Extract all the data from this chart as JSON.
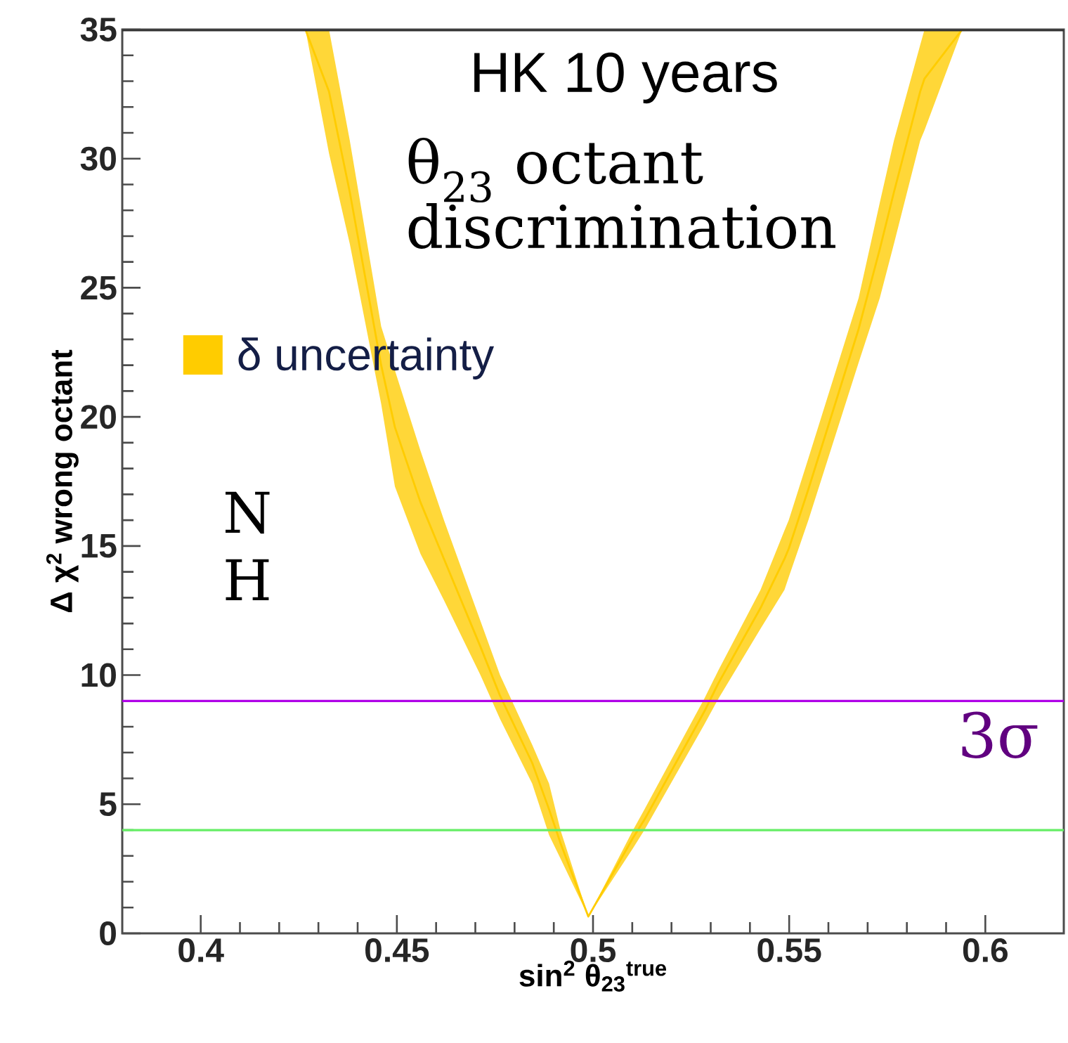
{
  "chart_data": {
    "type": "line",
    "xlabel": "sin$^{2}$ θ$_{23}$$^{true}$",
    "ylabel": "Δ χ$^{2}$ wrong octant",
    "annotations": [
      "HK 10 years",
      "θ$_{23}$ octant discrimination",
      "N H"
    ],
    "xlim": [
      0.38,
      0.62
    ],
    "xticks": [
      0.4,
      0.45,
      0.5,
      0.55,
      0.6
    ],
    "ylim": [
      0,
      35
    ],
    "yticks": [
      0,
      5,
      10,
      15,
      20,
      25,
      30,
      35
    ],
    "legend": "left",
    "grid": false,
    "ref_lines": [
      {
        "axis": "y",
        "value": 9,
        "label": "3σ",
        "color": "#b000e8"
      },
      {
        "axis": "y",
        "value": 4,
        "color": "#66ee66"
      }
    ],
    "series": [
      {
        "name": "δ uncertainty",
        "color": "#ffcc00",
        "x": [
          0.4267,
          0.4327,
          0.438,
          0.446,
          0.4495,
          0.456,
          0.462,
          0.4713,
          0.4763,
          0.4845,
          0.4888,
          0.4917,
          0.4988,
          0.5102,
          0.5131,
          0.5284,
          0.532,
          0.5427,
          0.5488,
          0.5499,
          0.5549,
          0.5677,
          0.5731,
          0.5767,
          0.5834,
          0.5845,
          0.5941
        ],
        "values": [
          35,
          32.6,
          28.7,
          22.0,
          19.6,
          16.7,
          14.5,
          11.1,
          9.2,
          6.6,
          4.8,
          3.5,
          0.65,
          3.7,
          4.4,
          8.6,
          9.7,
          12.6,
          14.5,
          14.9,
          17.2,
          23.4,
          26.5,
          28.7,
          32.6,
          33.1,
          35
        ],
        "lower": [
          35,
          30.2,
          26.7,
          20.5,
          17.3,
          14.7,
          12.9,
          10.0,
          8.3,
          5.8,
          3.8,
          2.9,
          0.65,
          3.3,
          4.0,
          8.1,
          9.1,
          11.8,
          13.3,
          13.8,
          16.0,
          22.1,
          24.6,
          26.7,
          30.7,
          31.1,
          35
        ],
        "upper": [
          35,
          35,
          30.7,
          23.5,
          21.8,
          18.7,
          16.0,
          12.1,
          10.0,
          7.3,
          5.8,
          4.0,
          0.65,
          4.0,
          4.8,
          9.1,
          10.2,
          13.3,
          15.6,
          16.0,
          18.4,
          24.6,
          28.3,
          30.7,
          34.4,
          35,
          35
        ]
      }
    ]
  }
}
